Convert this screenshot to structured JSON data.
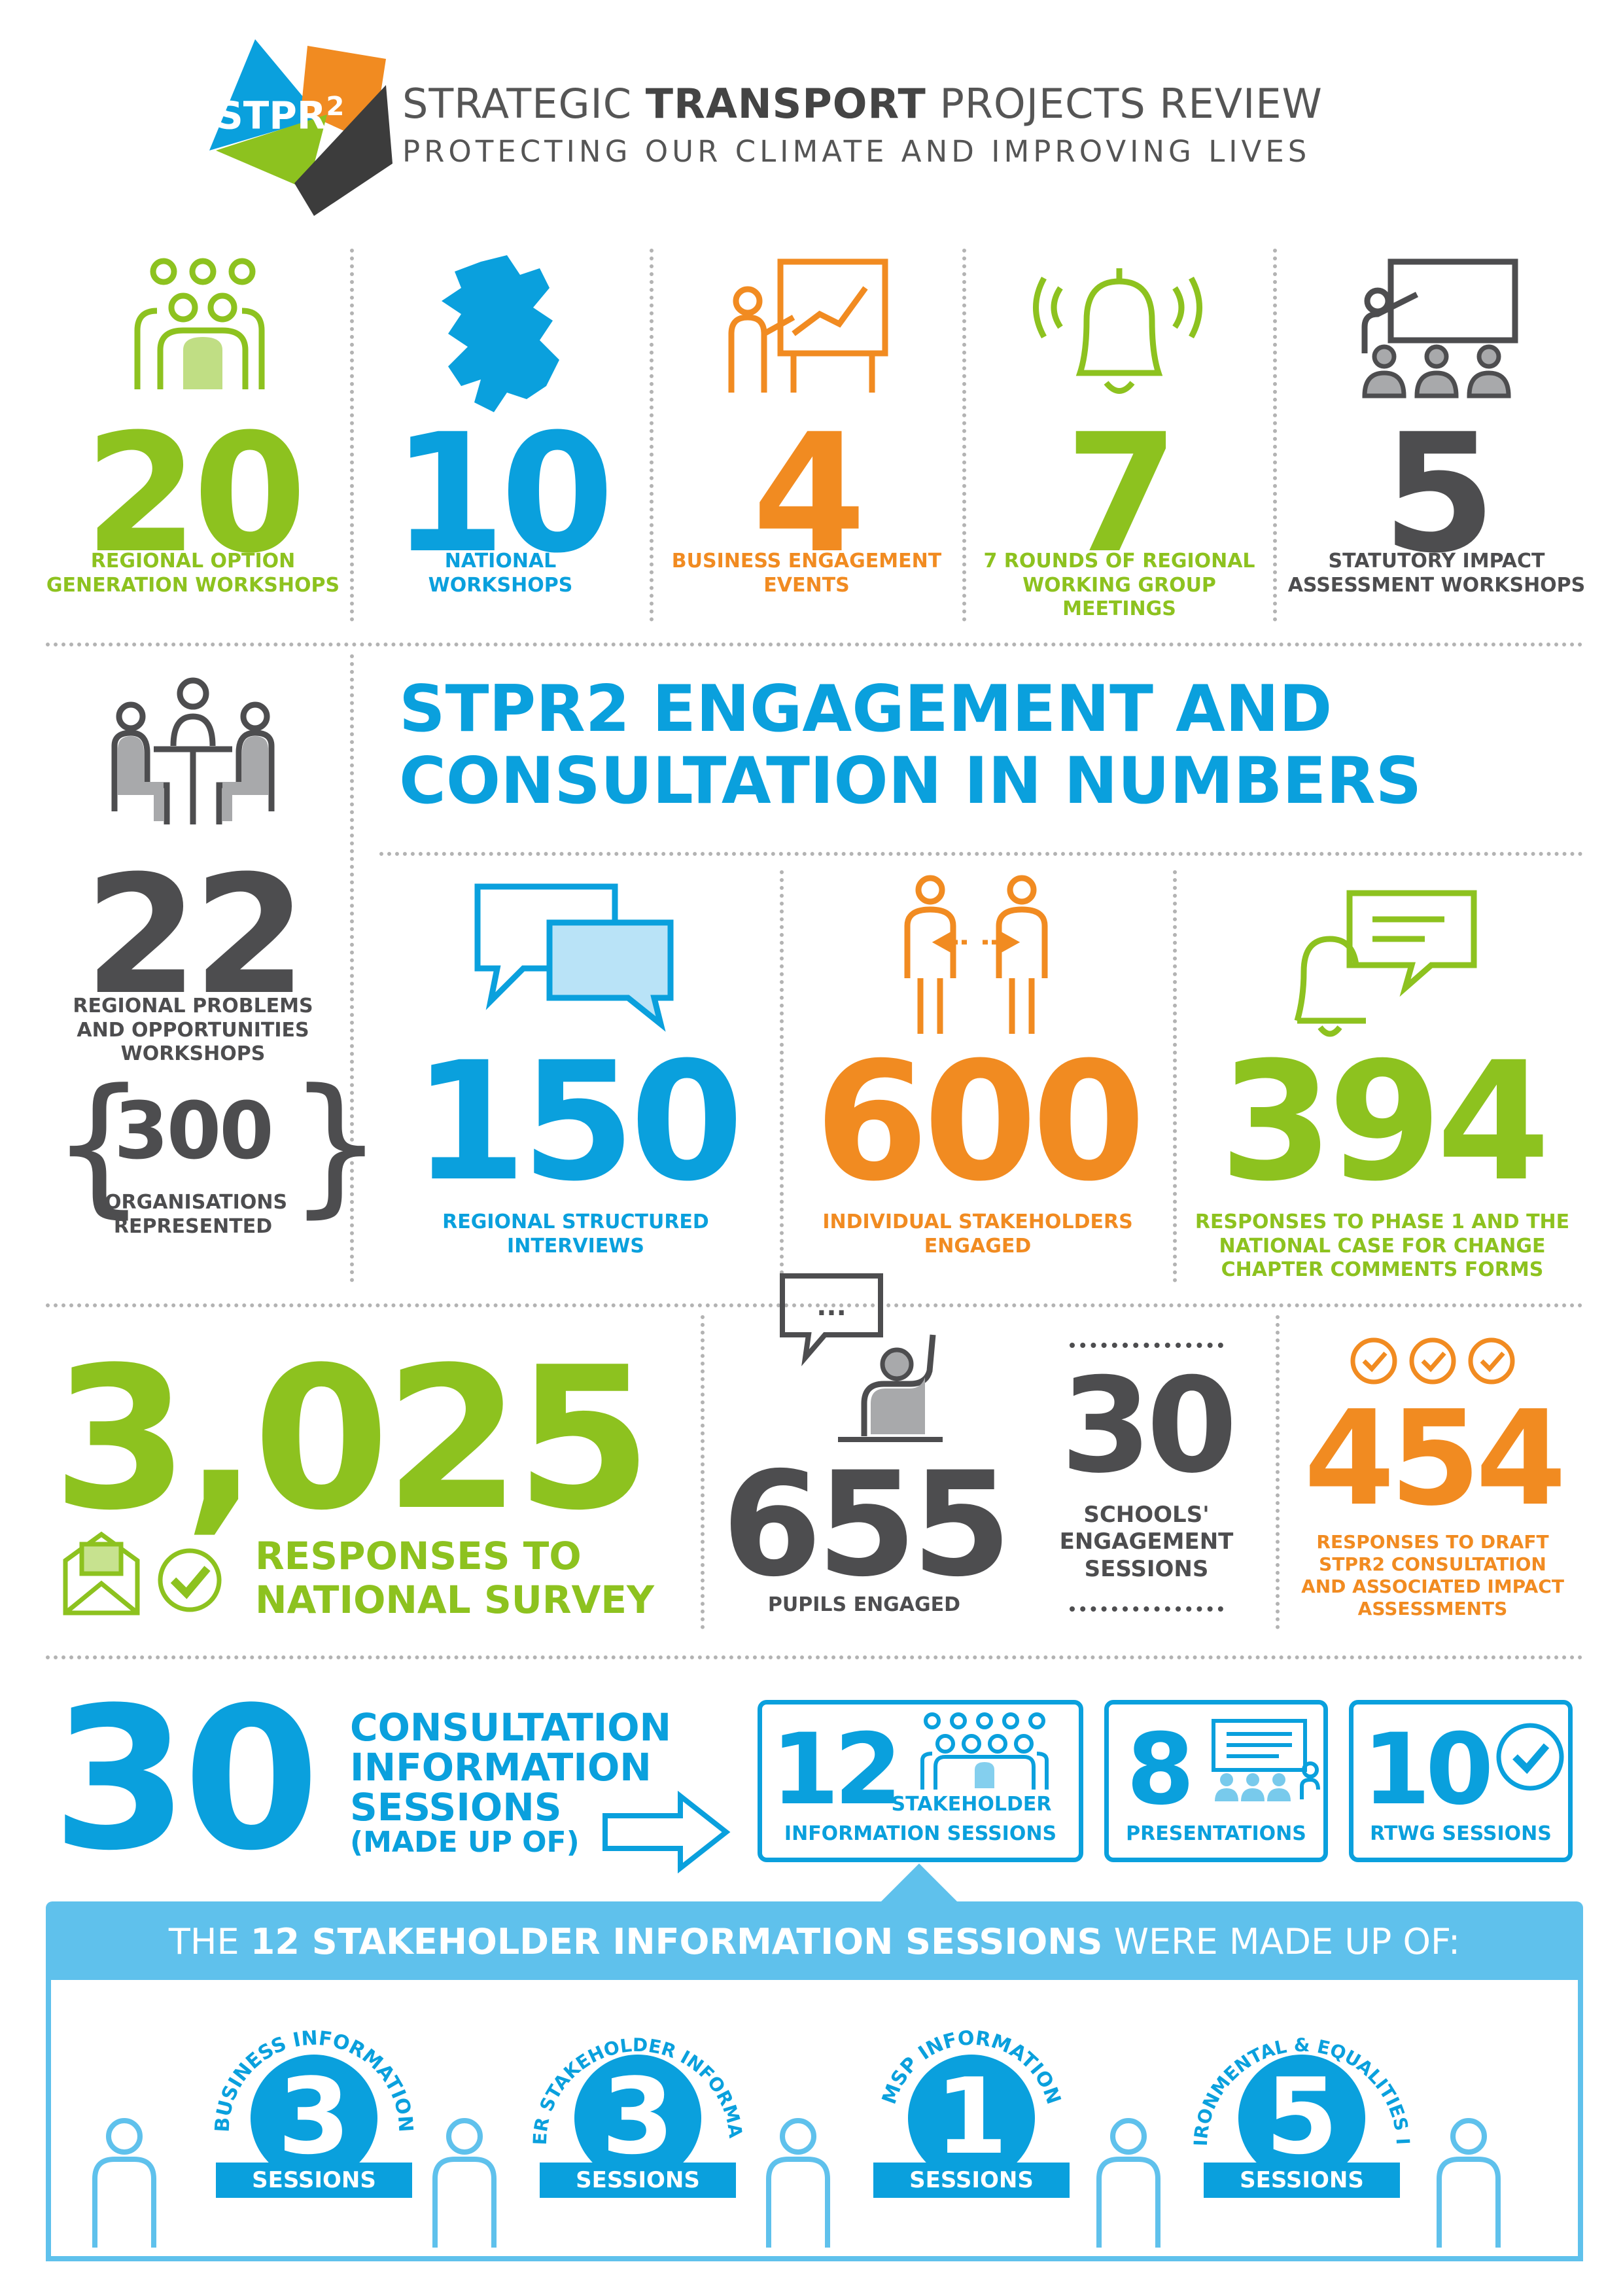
{
  "header": {
    "logo_text": "STPR",
    "logo_sup": "2",
    "title_part1": "STRATEGIC ",
    "title_bold": "TRANSPORT",
    "title_part2": " PROJECTS REVIEW",
    "subtitle": "PROTECTING OUR CLIMATE AND IMPROVING LIVES"
  },
  "top_stats": [
    {
      "number": "20",
      "caption": "REGIONAL OPTION GENERATION WORKSHOPS",
      "icon": "group-icon"
    },
    {
      "number": "10",
      "caption": "NATIONAL WORKSHOPS",
      "icon": "scotland-map-icon"
    },
    {
      "number": "4",
      "caption": "BUSINESS ENGAGEMENT EVENTS",
      "icon": "presenter-chart-icon"
    },
    {
      "number": "7",
      "caption": "7 ROUNDS OF REGIONAL WORKING GROUP MEETINGS",
      "icon": "bell-icon"
    },
    {
      "number": "5",
      "caption": "STATUTORY IMPACT ASSESSMENT WORKSHOPS",
      "icon": "classroom-icon"
    }
  ],
  "headline": {
    "line1": "STPR2 ENGAGEMENT AND",
    "line2": "CONSULTATION IN NUMBERS"
  },
  "left_col": {
    "number": "22",
    "caption": "REGIONAL PROBLEMS AND OPPORTUNITIES WORKSHOPS",
    "orgs_number": "300",
    "orgs_caption": "ORGANISATIONS REPRESENTED",
    "brace_left": "{",
    "brace_right": "}"
  },
  "mid_stats": [
    {
      "number": "150",
      "caption": "REGIONAL STRUCTURED INTERVIEWS",
      "icon": "chat-bubbles-icon"
    },
    {
      "number": "600",
      "caption": "INDIVIDUAL STAKEHOLDERS ENGAGED",
      "icon": "people-exchange-icon"
    },
    {
      "number": "394",
      "caption": "RESPONSES TO PHASE 1 AND THE NATIONAL CASE FOR CHANGE CHAPTER COMMENTS FORMS",
      "icon": "bell-message-icon"
    }
  ],
  "survey": {
    "number": "3,025",
    "caption_line1": "RESPONSES TO",
    "caption_line2": "NATIONAL SURVEY"
  },
  "pupils": {
    "number": "655",
    "caption": "PUPILS ENGAGED",
    "bubble": "..."
  },
  "schools": {
    "number": "30",
    "caption": "SCHOOLS' ENGAGEMENT SESSIONS"
  },
  "draft": {
    "number": "454",
    "caption": "RESPONSES TO DRAFT STPR2 CONSULTATION AND ASSOCIATED IMPACT ASSESSMENTS"
  },
  "consultation": {
    "number": "30",
    "caption_lines": [
      "CONSULTATION",
      "INFORMATION",
      "SESSIONS"
    ],
    "caption_sub": "(MADE UP OF)",
    "boxes": [
      {
        "number": "12",
        "label_line1": "STAKEHOLDER",
        "label_line2": "INFORMATION SESSIONS"
      },
      {
        "number": "8",
        "label": "PRESENTATIONS"
      },
      {
        "number": "10",
        "label": "RTWG SESSIONS"
      }
    ]
  },
  "stakeholder_breakdown": {
    "banner_pre": "THE ",
    "banner_bold": "12 STAKEHOLDER INFORMATION SESSIONS",
    "banner_post": " WERE MADE UP OF:",
    "items": [
      {
        "arc_label": "BUSINESS INFORMATION",
        "number": "3",
        "label": "SESSIONS"
      },
      {
        "arc_label": "WIDER STAKEHOLDER INFORMATION",
        "number": "3",
        "label": "SESSIONS"
      },
      {
        "arc_label": "MSP INFORMATION",
        "number": "1",
        "label": "SESSIONS"
      },
      {
        "arc_label": "ENVIRONMENTAL & EQUALITIES INFO",
        "number": "5",
        "label": "SESSIONS"
      }
    ]
  },
  "colors": {
    "green": "#8dc21f",
    "blue": "#0aa0dd",
    "orange": "#f18b21",
    "dark": "#4d4d4f",
    "light_blue": "#5fc1ec"
  }
}
